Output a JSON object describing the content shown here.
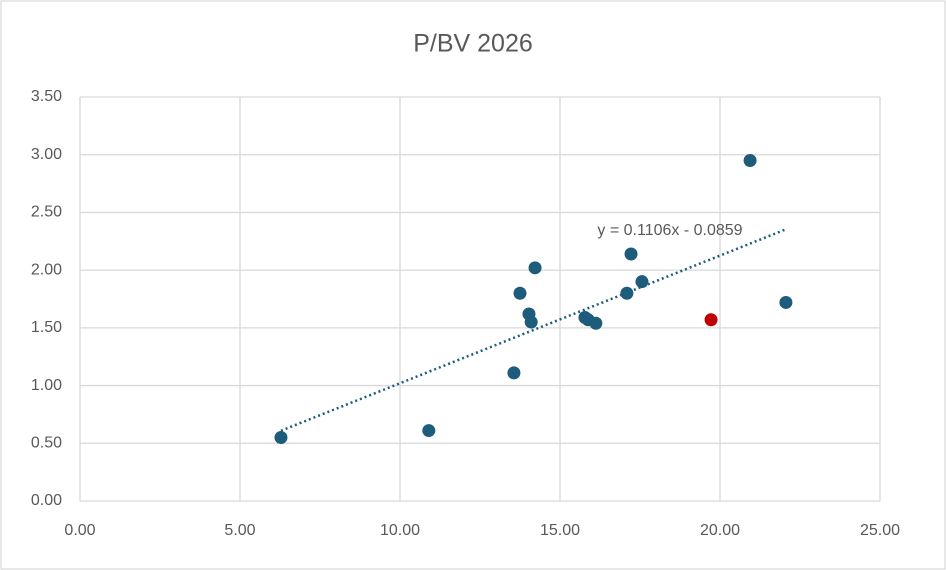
{
  "chart_data": {
    "type": "scatter",
    "title": "P/BV 2026",
    "series": [
      {
        "color": "#1d5c7b",
        "x": [
          6.28,
          10.9,
          13.56,
          13.75,
          14.03,
          14.1,
          14.22,
          15.78,
          15.88,
          16.12,
          17.09,
          17.22,
          17.56,
          20.94,
          22.06
        ],
        "y": [
          0.55,
          0.61,
          1.11,
          1.8,
          1.62,
          1.55,
          2.02,
          1.59,
          1.57,
          1.54,
          1.8,
          2.14,
          1.9,
          2.95,
          1.72
        ]
      },
      {
        "color": "#c00000",
        "x": [
          19.72
        ],
        "y": [
          1.57
        ]
      }
    ],
    "trendline": {
      "slope": 0.1106,
      "intercept": -0.0859,
      "label": "y = 0.1106x - 0.0859",
      "color": "#1d5c7b"
    },
    "xlim": [
      0,
      25
    ],
    "xticks": [
      {
        "value": 0,
        "label": "0.00"
      },
      {
        "value": 5,
        "label": "5.00"
      },
      {
        "value": 10,
        "label": "10.00"
      },
      {
        "value": 15,
        "label": "15.00"
      },
      {
        "value": 20,
        "label": "20.00"
      },
      {
        "value": 25,
        "label": "25.00"
      }
    ],
    "ylim": [
      0,
      3.5
    ],
    "yticks": [
      {
        "value": 0,
        "label": "0.00"
      },
      {
        "value": 0.5,
        "label": "0.50"
      },
      {
        "value": 1,
        "label": "1.00"
      },
      {
        "value": 1.5,
        "label": "1.50"
      },
      {
        "value": 2,
        "label": "2.00"
      },
      {
        "value": 2.5,
        "label": "2.50"
      },
      {
        "value": 3,
        "label": "3.00"
      },
      {
        "value": 3.5,
        "label": "3.50"
      }
    ],
    "grid": true
  }
}
